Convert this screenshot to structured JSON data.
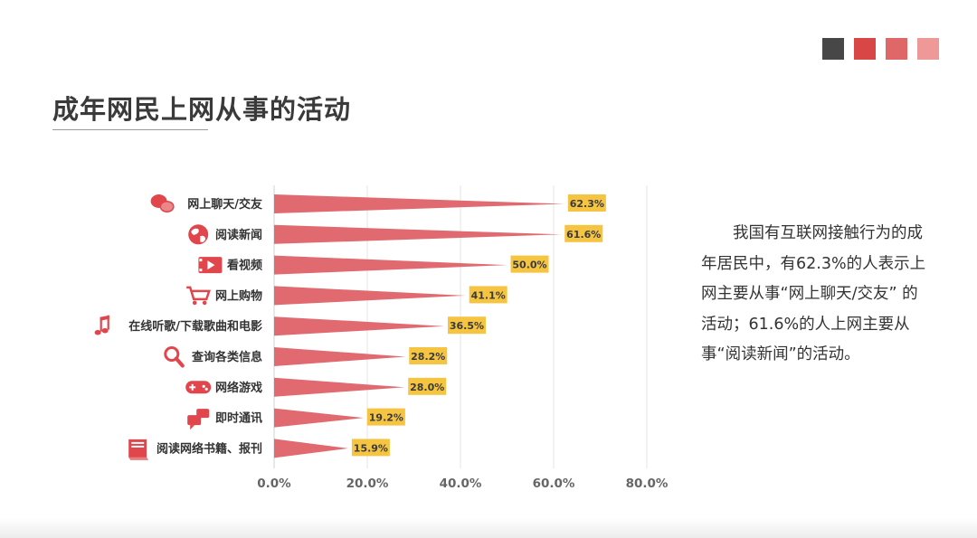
{
  "header": {
    "title": "成年网民上网从事的活动",
    "swatch_colors": [
      "#474747",
      "#d84646",
      "#e06767",
      "#ee9898"
    ]
  },
  "paragraph": {
    "text": "我国有互联网接触行为的成年居民中，有62.3%的人表示上网主要从事“网上聊天/交友” 的活动；61.6%的人上网主要从事“阅读新闻”的活动。"
  },
  "colors": {
    "bar": "#e06a70",
    "label_bg": "#f5c542",
    "grid": "#e4e4e4",
    "icon": "#e0464b"
  },
  "chart_data": {
    "type": "bar",
    "orientation": "horizontal",
    "bar_shape": "triangle",
    "categories": [
      "网上聊天/交友",
      "阅读新闻",
      "看视频",
      "网上购物",
      "在线听歌/下载歌曲和电影",
      "查询各类信息",
      "网络游戏",
      "即时通讯",
      "阅读网络书籍、报刊"
    ],
    "icons": [
      "wechat-icon",
      "globe-icon",
      "video-icon",
      "cart-icon",
      "music-icon",
      "search-icon",
      "gamepad-icon",
      "chat-icon",
      "book-icon"
    ],
    "values": [
      62.3,
      61.6,
      50.0,
      41.1,
      36.5,
      28.2,
      28.0,
      19.2,
      15.9
    ],
    "value_labels": [
      "62.3%",
      "61.6%",
      "50.0%",
      "41.1%",
      "36.5%",
      "28.2%",
      "28.0%",
      "19.2%",
      "15.9%"
    ],
    "xlim": [
      0,
      80
    ],
    "xticks": [
      0,
      20,
      40,
      60,
      80
    ],
    "xtick_labels": [
      "0.0%",
      "20.0%",
      "40.0%",
      "60.0%",
      "80.0%"
    ],
    "grid": true,
    "title": "",
    "xlabel": "",
    "ylabel": ""
  }
}
